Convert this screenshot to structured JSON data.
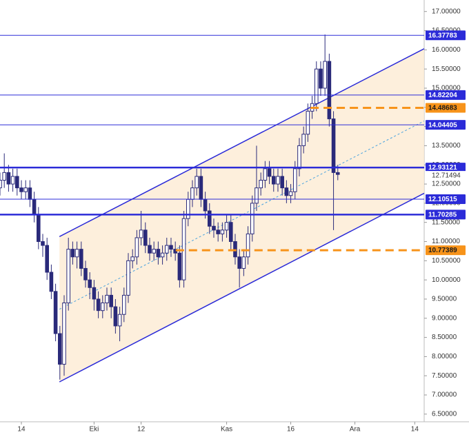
{
  "chart_data": {
    "type": "candlestick",
    "x": [
      -5,
      -4,
      -3,
      -2,
      -1,
      0,
      1,
      2,
      3,
      4,
      5,
      6,
      7,
      8,
      9,
      10,
      11,
      12,
      13,
      14,
      15,
      16,
      17,
      18,
      19,
      20,
      21,
      22,
      23,
      24,
      25,
      26,
      27,
      28,
      29,
      30,
      31,
      32,
      33,
      34,
      35,
      36,
      37,
      38,
      39,
      40,
      41,
      42,
      43,
      44,
      45,
      46,
      47,
      48,
      49,
      50,
      51,
      52,
      53,
      54,
      55,
      56,
      57,
      58,
      59,
      60,
      61,
      62,
      63,
      64,
      65,
      66,
      67,
      68,
      69,
      70,
      71,
      72,
      73,
      74
    ],
    "open": [
      12.4,
      12.6,
      12.8,
      12.5,
      12.7,
      12.4,
      12.3,
      12.4,
      12.1,
      11.7,
      11.0,
      10.9,
      10.2,
      9.7,
      8.6,
      7.8,
      9.4,
      10.8,
      10.6,
      10.8,
      10.3,
      10.0,
      9.8,
      9.5,
      9.2,
      9.4,
      9.6,
      9.3,
      8.8,
      9.1,
      9.6,
      10.5,
      10.6,
      11.1,
      11.3,
      10.9,
      10.7,
      10.8,
      10.6,
      10.7,
      10.9,
      10.8,
      10.7,
      10.0,
      11.6,
      12.1,
      12.4,
      12.7,
      12.1,
      11.8,
      11.4,
      11.3,
      11.2,
      11.3,
      11.5,
      11.0,
      10.6,
      10.3,
      10.6,
      11.2,
      12.0,
      12.4,
      12.6,
      12.9,
      12.7,
      12.5,
      12.7,
      12.4,
      12.2,
      12.3,
      12.9,
      13.5,
      13.8,
      14.4,
      14.6,
      15.5,
      15.0,
      15.7,
      14.2,
      12.8
    ],
    "high": [
      12.8,
      13.3,
      13.0,
      12.9,
      12.9,
      12.6,
      12.6,
      12.6,
      12.3,
      11.9,
      11.2,
      11.1,
      10.4,
      9.9,
      8.8,
      9.6,
      11.1,
      11.0,
      11.0,
      11.0,
      10.5,
      10.2,
      10.0,
      9.7,
      9.6,
      9.8,
      9.8,
      9.5,
      9.3,
      9.8,
      10.7,
      10.8,
      11.3,
      11.8,
      11.5,
      11.1,
      11.0,
      11.0,
      10.9,
      11.1,
      11.1,
      11.0,
      10.9,
      11.8,
      12.3,
      12.6,
      12.9,
      12.9,
      12.3,
      12.0,
      11.6,
      11.5,
      11.5,
      11.7,
      11.7,
      11.2,
      10.8,
      10.8,
      11.4,
      12.2,
      13.5,
      12.8,
      13.1,
      13.1,
      12.9,
      12.9,
      12.9,
      12.6,
      12.5,
      13.1,
      13.7,
      14.0,
      14.6,
      14.8,
      15.7,
      15.7,
      16.4,
      15.9,
      14.4,
      13.0
    ],
    "low": [
      12.2,
      12.4,
      12.3,
      12.3,
      12.2,
      12.1,
      12.1,
      11.9,
      11.5,
      10.8,
      10.6,
      10.0,
      9.5,
      8.4,
      7.4,
      7.5,
      9.2,
      10.4,
      10.3,
      10.1,
      9.8,
      9.5,
      9.2,
      9.0,
      9.0,
      9.2,
      9.0,
      8.6,
      8.4,
      8.9,
      9.4,
      10.3,
      10.4,
      10.9,
      10.7,
      10.5,
      10.5,
      10.4,
      10.4,
      10.5,
      10.6,
      10.5,
      9.8,
      9.8,
      11.4,
      11.9,
      12.2,
      11.9,
      11.6,
      11.2,
      11.1,
      11.0,
      11.0,
      11.1,
      10.8,
      10.4,
      9.8,
      10.1,
      10.4,
      11.0,
      11.8,
      12.2,
      12.4,
      12.5,
      12.3,
      12.3,
      12.2,
      12.0,
      12.0,
      12.1,
      12.7,
      13.3,
      13.6,
      14.2,
      14.4,
      14.8,
      14.8,
      14.0,
      11.3,
      12.6
    ],
    "close": [
      12.6,
      12.8,
      12.5,
      12.7,
      12.4,
      12.3,
      12.4,
      12.1,
      11.7,
      11.0,
      10.9,
      10.2,
      9.7,
      8.6,
      7.8,
      9.4,
      10.8,
      10.6,
      10.8,
      10.3,
      10.0,
      9.8,
      9.5,
      9.2,
      9.4,
      9.6,
      9.3,
      8.8,
      9.1,
      9.6,
      10.5,
      10.6,
      11.1,
      11.3,
      10.9,
      10.7,
      10.8,
      10.6,
      10.7,
      10.9,
      10.8,
      10.7,
      10.0,
      11.6,
      12.1,
      12.4,
      12.7,
      12.1,
      11.8,
      11.4,
      11.3,
      11.2,
      11.3,
      11.5,
      11.0,
      10.6,
      10.3,
      10.6,
      11.2,
      12.0,
      12.4,
      12.6,
      12.9,
      12.7,
      12.5,
      12.7,
      12.4,
      12.2,
      12.3,
      12.9,
      13.5,
      13.8,
      14.4,
      14.6,
      15.5,
      15.0,
      15.7,
      14.2,
      12.8,
      12.75
    ],
    "up_color": "#ffffff",
    "down_color": "#2a2a7a",
    "outline_color": "#2a2a7a",
    "xlim": [
      -5,
      94.2
    ],
    "ylim": [
      6.3,
      17.3
    ],
    "xticks": [
      {
        "value": 0,
        "label": "14"
      },
      {
        "value": 17,
        "label": "Eki"
      },
      {
        "value": 28,
        "label": "12"
      },
      {
        "value": 48,
        "label": "Kas"
      },
      {
        "value": 63,
        "label": "16"
      },
      {
        "value": 78,
        "label": "Ara"
      },
      {
        "value": 92,
        "label": "14"
      }
    ],
    "yticks": [
      {
        "value": 17,
        "label": "17.00000"
      },
      {
        "value": 16.5,
        "label": "16.50000"
      },
      {
        "value": 16,
        "label": "16.00000"
      },
      {
        "value": 15.5,
        "label": "15.50000"
      },
      {
        "value": 15,
        "label": "15.00000"
      },
      {
        "value": 14.5,
        "label": "14.50000"
      },
      {
        "value": 14,
        "label": "14.00000"
      },
      {
        "value": 13.5,
        "label": "13.50000"
      },
      {
        "value": 13,
        "label": "13.00000"
      },
      {
        "value": 12.5,
        "label": "12.50000"
      },
      {
        "value": 12,
        "label": "12.00000"
      },
      {
        "value": 11.5,
        "label": "11.50000"
      },
      {
        "value": 11,
        "label": "11.00000"
      },
      {
        "value": 10.5,
        "label": "10.50000"
      },
      {
        "value": 10,
        "label": "10.00000"
      },
      {
        "value": 9.5,
        "label": "9.50000"
      },
      {
        "value": 9,
        "label": "9.00000"
      },
      {
        "value": 8.5,
        "label": "8.50000"
      },
      {
        "value": 8,
        "label": "8.00000"
      },
      {
        "value": 7.5,
        "label": "7.50000"
      },
      {
        "value": 7,
        "label": "7.00000"
      },
      {
        "value": 6.5,
        "label": "6.50000"
      }
    ],
    "levels": [
      {
        "value": 16.37783,
        "style": "thin",
        "color": "#2b2bd8"
      },
      {
        "value": 14.82204,
        "style": "thin",
        "color": "#2b2bd8"
      },
      {
        "value": 14.48683,
        "style": "dashed",
        "color": "#f7931a",
        "from_x": 67.6
      },
      {
        "value": 14.04405,
        "style": "thin",
        "color": "#2b2bd8"
      },
      {
        "value": 12.93121,
        "style": "thick",
        "color": "#2b2bd8"
      },
      {
        "value": 12.10515,
        "style": "thin",
        "color": "#2b2bd8"
      },
      {
        "value": 11.70285,
        "style": "thick",
        "color": "#2b2bd8"
      },
      {
        "value": 10.77389,
        "style": "dashed",
        "color": "#f7931a",
        "from_x": 36.1
      }
    ],
    "last_price": 12.71494,
    "channel": {
      "color": "#2b2bd8",
      "fill": "#fdebd3",
      "upper": {
        "x": [
          8.9,
          94.2
        ],
        "y": [
          11.13,
          16.03
        ]
      },
      "lower": {
        "x": [
          8.9,
          94.2
        ],
        "y": [
          7.34,
          12.26
        ]
      }
    }
  }
}
